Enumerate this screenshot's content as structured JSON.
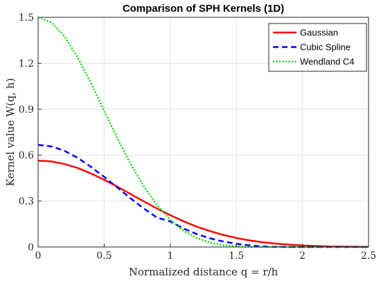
{
  "chart_data": {
    "type": "line",
    "title": "Comparison of SPH Kernels (1D)",
    "xlabel": "Normalized distance q = r/h",
    "ylabel": "Kernel value W(q, h)",
    "xlim": [
      0,
      2.5
    ],
    "ylim": [
      0,
      1.5
    ],
    "xticks": [
      0,
      0.5,
      1,
      1.5,
      2,
      2.5
    ],
    "xtick_labels": [
      "0",
      "0.5",
      "1",
      "1.5",
      "2",
      "2.5"
    ],
    "yticks": [
      0,
      0.3,
      0.6,
      0.9,
      1.2,
      1.5
    ],
    "ytick_labels": [
      "0",
      "0.3",
      "0.6",
      "0.9",
      "1.2",
      "1.5"
    ],
    "grid": true,
    "legend_position": "top-right",
    "series": [
      {
        "name": "Gaussian",
        "color": "#ff0000",
        "style": "solid",
        "x": [
          0,
          0.1,
          0.2,
          0.3,
          0.4,
          0.5,
          0.6,
          0.7,
          0.8,
          0.9,
          1.0,
          1.1,
          1.2,
          1.3,
          1.4,
          1.5,
          1.6,
          1.7,
          1.8,
          1.9,
          2.0,
          2.1,
          2.2,
          2.3,
          2.4,
          2.5
        ],
        "y": [
          0.564,
          0.559,
          0.542,
          0.516,
          0.48,
          0.439,
          0.394,
          0.346,
          0.298,
          0.251,
          0.208,
          0.168,
          0.133,
          0.104,
          0.079,
          0.059,
          0.043,
          0.031,
          0.022,
          0.015,
          0.01,
          0.007,
          0.004,
          0.003,
          0.002,
          0.001
        ]
      },
      {
        "name": "Cubic Spline",
        "color": "#0000ff",
        "style": "dashed",
        "x": [
          0,
          0.1,
          0.2,
          0.3,
          0.4,
          0.5,
          0.6,
          0.7,
          0.8,
          0.9,
          1.0,
          1.1,
          1.2,
          1.3,
          1.4,
          1.5,
          1.6,
          1.7,
          1.8,
          1.9,
          2.0,
          2.1,
          2.2,
          2.3,
          2.4,
          2.5
        ],
        "y": [
          0.667,
          0.657,
          0.628,
          0.582,
          0.523,
          0.458,
          0.388,
          0.318,
          0.251,
          0.192,
          0.167,
          0.121,
          0.085,
          0.057,
          0.036,
          0.021,
          0.011,
          0.004,
          0.001,
          0.0002,
          0,
          0,
          0,
          0,
          0,
          0
        ]
      },
      {
        "name": "Wendland C4",
        "color": "#00dd00",
        "style": "dotted",
        "x": [
          0,
          0.1,
          0.2,
          0.3,
          0.4,
          0.5,
          0.6,
          0.7,
          0.8,
          0.9,
          1.0,
          1.1,
          1.2,
          1.3,
          1.4,
          1.5,
          1.6,
          1.7,
          1.8,
          1.9,
          2.0,
          2.1,
          2.2,
          2.3,
          2.4,
          2.5
        ],
        "y": [
          1.5,
          1.467,
          1.375,
          1.237,
          1.07,
          0.89,
          0.71,
          0.542,
          0.395,
          0.273,
          0.177,
          0.107,
          0.059,
          0.029,
          0.012,
          0.004,
          0.001,
          0.0002,
          0,
          0,
          0,
          0,
          0,
          0,
          0,
          0
        ]
      }
    ]
  }
}
